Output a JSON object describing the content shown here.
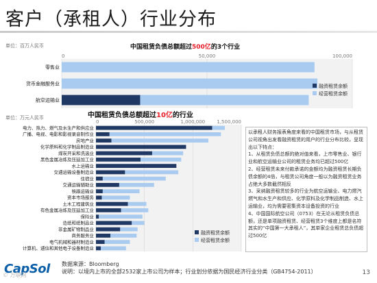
{
  "page": {
    "title": "客户（承租人）行业分布",
    "source_line1": "数据来源：Bloomberg",
    "source_line2": "说明：以境内上市的全部2532家上市公司为样本；行业划分依据为国民经济行业分类（GB4754-2011）",
    "logo": "CapSol",
    "page_number": "13",
    "watermark": "© 万联网"
  },
  "chart1": {
    "unit": "单位：百万人民币",
    "title_pre": "中国租赁负债总额超过",
    "title_hl": "500亿",
    "title_post": "的3个行业"
  },
  "chart2": {
    "unit": "单位：万元人民币",
    "title_pre": "中国租赁负债总额超过",
    "title_hl": "10亿",
    "title_post": "的行业"
  },
  "notes": {
    "intro": "以承租人财务报表角度来看的中国租赁市场，与从租赁公司视角出发看融资租赁的用户的行业分布比较，呈现出以下特点：",
    "items": [
      "1、从租赁负债总额的绝对值来看，上市零售业、银行业和航空运输业公司的租赁业务均已超过500亿",
      "2、经营租赁未来付款承诺的金额均为融资租赁长期负债余额的4倍，与租赁公司角度一般以为融资租赁业务占绝大多数截然相反",
      "3、采纳融资租赁较多的行业为航空运输业、电力燃汽燃气和水生产和供应、化学原料及化学制品制造、水上运输业，均为需要密集资本设备投资的行业",
      "4、中国国际航空公司（0753）在无论从租赁负债总额，还是单项融资租赁、经营租赁3个维度上都是名符其实的“中国第一大承租人”，其单家企业租赁总负债超过500亿"
    ]
  },
  "chart_data": [
    {
      "type": "bar",
      "orientation": "horizontal",
      "stacked": true,
      "categories": [
        "零售业",
        "货币金融服务业",
        "航空运输业"
      ],
      "series": [
        {
          "name": "融资租赁余额",
          "color": "#1f3864",
          "values": [
            0,
            0,
            27000
          ]
        },
        {
          "name": "经营租赁余额",
          "color": "#a9cbf0",
          "values": [
            87000,
            88000,
            58000
          ]
        }
      ],
      "xlim": [
        0,
        100000
      ],
      "xticks": [
        "0",
        "50,000",
        "100,000"
      ],
      "tick_values": [
        0,
        50000,
        100000
      ],
      "legend_position": "bottom-right"
    },
    {
      "type": "bar",
      "orientation": "horizontal",
      "stacked": true,
      "categories": [
        "电力、热力、燃气及水生产和供应业",
        "广播、电视、电影和影视录音制作业",
        "房地产业",
        "化学原料和化学制品制造业",
        "煤炭开采和洗选业",
        "黑色金属冶炼及压延加工业",
        "水上运输业",
        "交通运输设备制造业",
        "住宿业",
        "交通运输辅助业",
        "铁路运输业",
        "资本市场服务",
        "土木工程建筑业",
        "有色金属冶炼及压延加工业",
        "保险业",
        "造纸和纸制品业",
        "非金属矿物制品业",
        "商务服务业",
        "电气机械和器材制造业",
        "计算机、通信和其他电子设备制造业"
      ],
      "series": [
        {
          "name": "融资租赁余额",
          "color": "#1f3864",
          "values": [
            1200000,
            140000,
            160000,
            930000,
            580000,
            460000,
            830000,
            300000,
            70000,
            240000,
            70000,
            60000,
            330000,
            260000,
            30000,
            370000,
            250000,
            150000,
            90000,
            50000
          ]
        },
        {
          "name": "经营租赁余额",
          "color": "#a9cbf0",
          "values": [
            130000,
            1150000,
            1000000,
            0,
            320000,
            420000,
            0,
            550000,
            650000,
            360000,
            380000,
            290000,
            190000,
            280000,
            450000,
            130000,
            180000,
            270000,
            260000,
            260000
          ]
        }
      ],
      "xlim": [
        0,
        1500000
      ],
      "xticks": [
        "0",
        "500,000",
        "1,000,000",
        "1,500,000"
      ],
      "tick_values": [
        0,
        500000,
        1000000,
        1500000
      ],
      "legend_position": "bottom-right"
    }
  ]
}
